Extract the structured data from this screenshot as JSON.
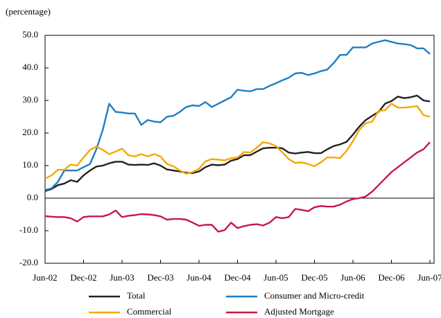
{
  "chart_data": {
    "type": "line",
    "ylabel": "(percentage)",
    "categories": [
      "Jun-02",
      null,
      null,
      null,
      null,
      null,
      "Dec-02",
      null,
      null,
      null,
      null,
      null,
      "Jun-03",
      null,
      null,
      null,
      null,
      null,
      "Dec-03",
      null,
      null,
      null,
      null,
      null,
      "Jun-04",
      null,
      null,
      null,
      null,
      null,
      "Dec-04",
      null,
      null,
      null,
      null,
      null,
      "Jun-05",
      null,
      null,
      null,
      null,
      null,
      "Dec-05",
      null,
      null,
      null,
      null,
      null,
      "Jun-06",
      null,
      null,
      null,
      null,
      null,
      "Dec-06",
      null,
      null,
      null,
      null,
      null,
      "Jun-07"
    ],
    "ylim": [
      -20,
      50
    ],
    "yticks": [
      {
        "value": -20,
        "label": "-20.0"
      },
      {
        "value": -10,
        "label": "-10.0"
      },
      {
        "value": 0,
        "label": "0.0"
      },
      {
        "value": 10,
        "label": "10.0"
      },
      {
        "value": 20,
        "label": "20.0"
      },
      {
        "value": 30,
        "label": "30.0"
      },
      {
        "value": 40,
        "label": "40.0"
      },
      {
        "value": 50,
        "label": "50.0"
      }
    ],
    "series": [
      {
        "name": "Total",
        "color": "#231f20",
        "values": [
          2.2,
          2.8,
          4,
          4.5,
          5.5,
          5,
          7,
          8.5,
          9.7,
          10,
          10.7,
          11.2,
          11.2,
          10.3,
          10.2,
          10.3,
          10.2,
          10.7,
          10,
          8.8,
          8.5,
          8.2,
          7.8,
          7.7,
          8.2,
          9.5,
          10.3,
          10.1,
          10.3,
          11.5,
          12,
          13.2,
          13.2,
          14.3,
          15.3,
          15.5,
          15.5,
          15.3,
          14,
          13.7,
          14,
          14.2,
          13.8,
          13.8,
          15,
          16,
          16.5,
          17.3,
          19.5,
          22,
          24,
          25.3,
          26.5,
          29,
          29.8,
          31.2,
          30.7,
          31,
          31.5,
          30,
          29.7
        ]
      },
      {
        "name": "Consumer and Micro-credit",
        "color": "#1f7dc1",
        "values": [
          2.5,
          3,
          5,
          8.5,
          8.5,
          8.5,
          9.5,
          10.5,
          15,
          21,
          29,
          26.5,
          26.3,
          26,
          26,
          22.5,
          24,
          23.5,
          23.3,
          25,
          25.3,
          26.5,
          28,
          28.5,
          28.3,
          29.5,
          28,
          29,
          30,
          31,
          33.3,
          33,
          32.8,
          33.5,
          33.5,
          34.5,
          35.3,
          36.2,
          37,
          38.3,
          38.5,
          37.8,
          38.3,
          39,
          39.5,
          41.5,
          44,
          44,
          46.3,
          46.3,
          46.3,
          47.5,
          48,
          48.5,
          48,
          47.5,
          47.3,
          47,
          46,
          46,
          44.3
        ]
      },
      {
        "name": "Commercial",
        "color": "#f2a900",
        "values": [
          6,
          7,
          8.7,
          8.7,
          10.3,
          10,
          12.5,
          14.8,
          15.8,
          14.8,
          13.5,
          14.3,
          15.2,
          13.2,
          12.8,
          13.5,
          12.8,
          13.5,
          12.8,
          10.5,
          9.8,
          8.5,
          7.5,
          8,
          9,
          11.3,
          12,
          11.8,
          11.6,
          12.3,
          12.5,
          14.2,
          14,
          15.5,
          17.2,
          16.8,
          16,
          14,
          12,
          10.8,
          11,
          10.5,
          9.8,
          11,
          12.5,
          12.5,
          12.3,
          14.5,
          17.5,
          21,
          23,
          23.5,
          26.8,
          27,
          29,
          27.8,
          27.8,
          28,
          28.3,
          25.5,
          25
        ]
      },
      {
        "name": "Adjusted Mortgage",
        "color": "#c8174a",
        "values": [
          -5.5,
          -5.7,
          -5.8,
          -5.8,
          -6.2,
          -7.2,
          -5.8,
          -5.6,
          -5.6,
          -5.6,
          -5,
          -3.8,
          -5.8,
          -5.4,
          -5.2,
          -4.9,
          -5,
          -5.2,
          -5.6,
          -6.6,
          -6.4,
          -6.4,
          -6.6,
          -7.5,
          -8.5,
          -8.2,
          -8.2,
          -10.3,
          -9.8,
          -7.5,
          -9.2,
          -8.6,
          -8.2,
          -8,
          -8.4,
          -7.5,
          -5.8,
          -6.2,
          -5.8,
          -3.3,
          -3.6,
          -4,
          -2.8,
          -2.4,
          -2.6,
          -2.6,
          -2,
          -1,
          -0.3,
          0,
          0.5,
          2,
          4,
          6,
          8,
          9.5,
          11,
          12.5,
          14,
          15,
          17.2
        ]
      }
    ]
  }
}
